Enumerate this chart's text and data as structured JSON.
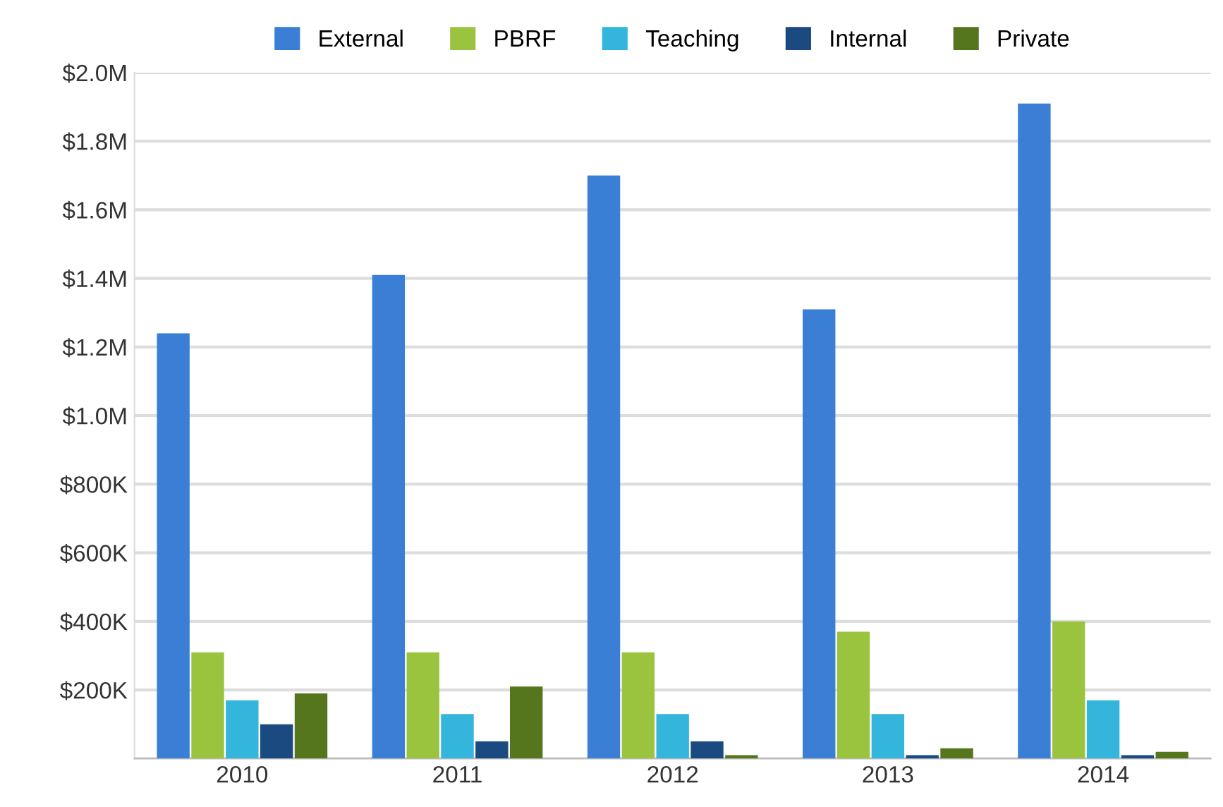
{
  "chart_data": {
    "type": "bar",
    "categories": [
      "2010",
      "2011",
      "2012",
      "2013",
      "2014"
    ],
    "series": [
      {
        "name": "External",
        "color": "#3a7fd5",
        "values": [
          1240000,
          1410000,
          1700000,
          1310000,
          1910000
        ]
      },
      {
        "name": "PBRF",
        "color": "#9bc43e",
        "values": [
          310000,
          310000,
          310000,
          370000,
          400000
        ]
      },
      {
        "name": "Teaching",
        "color": "#33b5dc",
        "values": [
          170000,
          130000,
          130000,
          130000,
          170000
        ]
      },
      {
        "name": "Internal",
        "color": "#1a4a80",
        "values": [
          100000,
          50000,
          50000,
          10000,
          10000
        ]
      },
      {
        "name": "Private",
        "color": "#56761e",
        "values": [
          190000,
          210000,
          10000,
          30000,
          20000
        ]
      }
    ],
    "ylim": [
      0,
      2000000
    ],
    "yticks": [
      {
        "value": 0,
        "label": null
      },
      {
        "value": 200000,
        "label": "$200K"
      },
      {
        "value": 400000,
        "label": "$400K"
      },
      {
        "value": 600000,
        "label": "$600K"
      },
      {
        "value": 800000,
        "label": "$800K"
      },
      {
        "value": 1000000,
        "label": "$1.0M"
      },
      {
        "value": 1200000,
        "label": "$1.2M"
      },
      {
        "value": 1400000,
        "label": "$1.4M"
      },
      {
        "value": 1600000,
        "label": "$1.6M"
      },
      {
        "value": 1800000,
        "label": "$1.8M"
      },
      {
        "value": 2000000,
        "label": "$2.0M"
      }
    ],
    "grid": "y",
    "legend": "top"
  }
}
